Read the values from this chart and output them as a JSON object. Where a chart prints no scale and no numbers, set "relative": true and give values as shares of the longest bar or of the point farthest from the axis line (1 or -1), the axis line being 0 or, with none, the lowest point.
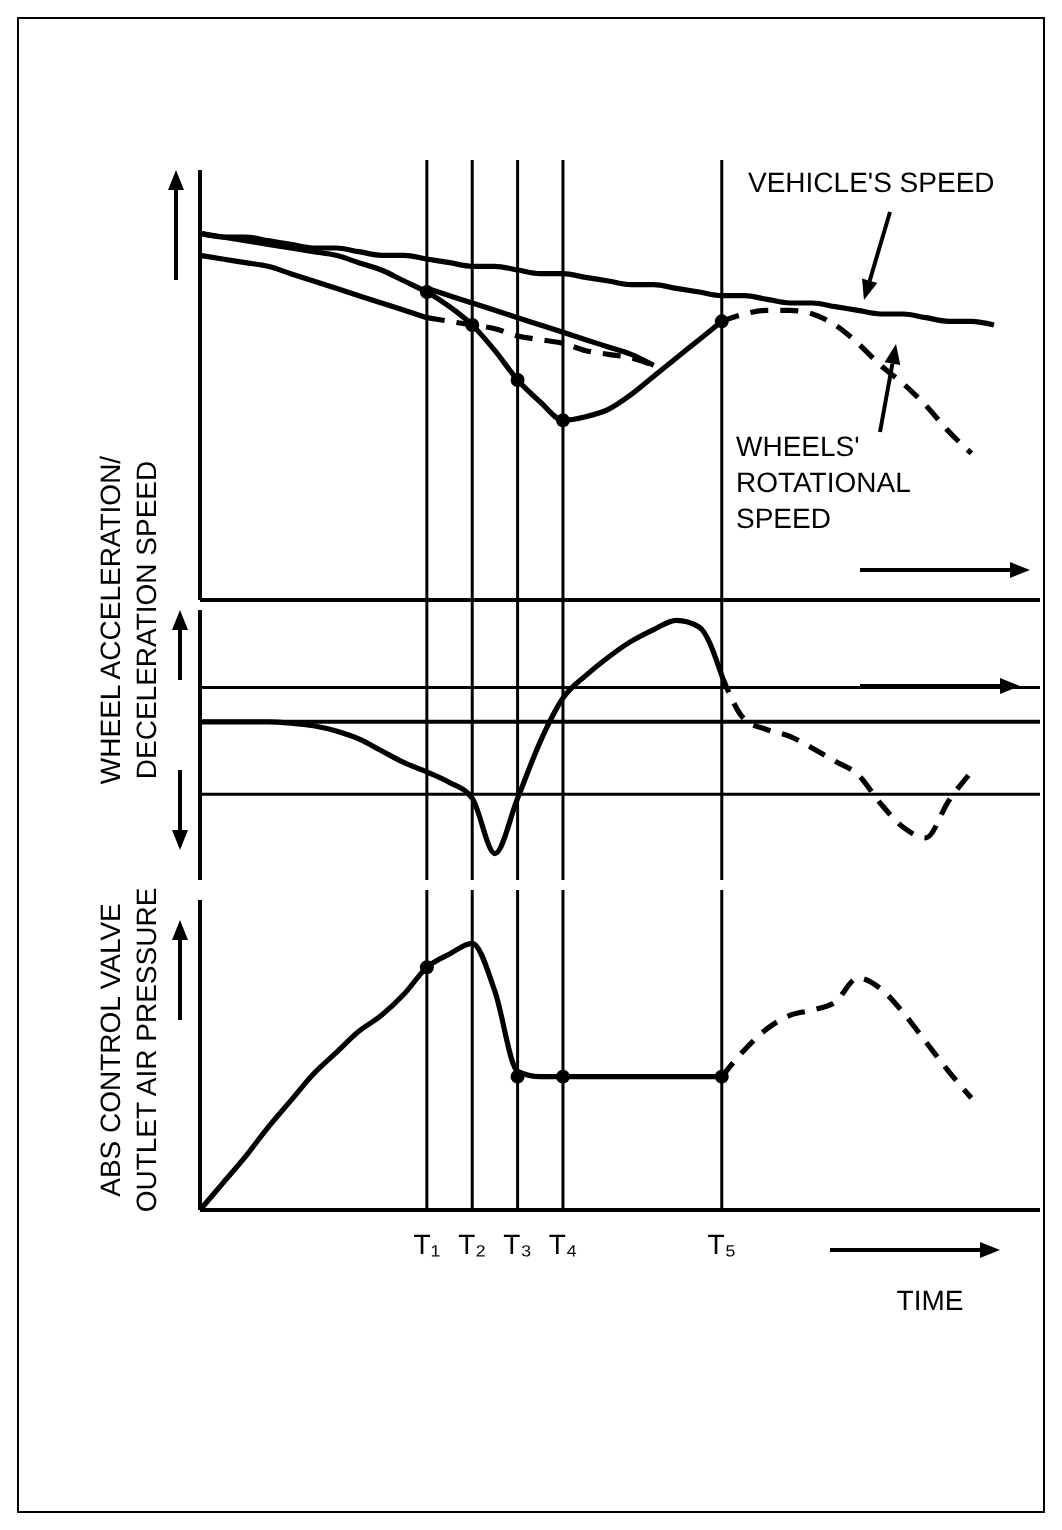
{
  "chart_data": [
    {
      "type": "line",
      "relative": true,
      "tick_labels": false,
      "categories": [
        null,
        null,
        null,
        null,
        null,
        null,
        null,
        null,
        null,
        null,
        "T₁",
        null,
        "T₂",
        null,
        "T₃",
        null,
        "T₄",
        null,
        null,
        null,
        null,
        null,
        null,
        "T₅",
        null,
        null,
        null,
        null,
        null,
        null,
        null,
        null,
        null,
        null,
        null,
        null
      ],
      "series": [
        {
          "name": "VEHICLE'S SPEED",
          "color": "#000000",
          "line_style": "solid",
          "values": [
            1,
            0.99,
            0.99,
            0.98,
            0.97,
            0.96,
            0.96,
            0.95,
            0.94,
            0.94,
            0.93,
            0.92,
            0.91,
            0.91,
            0.9,
            0.89,
            0.89,
            0.88,
            0.87,
            0.86,
            0.86,
            0.85,
            0.84,
            0.83,
            0.83,
            0.82,
            0.81,
            0.81,
            0.8,
            0.79,
            0.78,
            0.78,
            0.77,
            0.76,
            0.76,
            0.75
          ]
        },
        {
          "color": "#000000",
          "line_style": "solid",
          "values": [
            1,
            0.99,
            0.98,
            0.97,
            0.96,
            0.95,
            0.94,
            0.92,
            0.9,
            0.87,
            0.84,
            0.8,
            0.75,
            0.68,
            0.6,
            0.54,
            0.49,
            0.5,
            0.52,
            0.56,
            0.61,
            0.66,
            0.71,
            0.76,
            null,
            null,
            null,
            null,
            null,
            null,
            null,
            null,
            null,
            null,
            null,
            null
          ]
        },
        {
          "name": "WHEELS' ROTATIONAL SPEED",
          "color": "#000000",
          "line_style": "dashed",
          "values": [
            null,
            null,
            null,
            null,
            null,
            null,
            null,
            null,
            null,
            null,
            null,
            null,
            null,
            null,
            null,
            null,
            null,
            null,
            null,
            null,
            null,
            null,
            null,
            0.76,
            0.78,
            0.79,
            0.79,
            0.78,
            0.75,
            0.7,
            0.64,
            0.59,
            0.53,
            0.46,
            0.4,
            null
          ]
        },
        {
          "color": "#000000",
          "line_style": "solid",
          "values": [
            null,
            null,
            null,
            null,
            null,
            null,
            null,
            null,
            null,
            null,
            0.85,
            0.83,
            0.81,
            0.79,
            0.77,
            0.75,
            0.73,
            0.71,
            0.69,
            0.67,
            0.64,
            null,
            null,
            null,
            null,
            null,
            null,
            null,
            null,
            null,
            null,
            null,
            null,
            null,
            null,
            null
          ]
        },
        {
          "color": "#000000",
          "line_style": "solid",
          "values": [
            0.94,
            0.93,
            0.92,
            0.91,
            0.89,
            0.87,
            0.85,
            0.83,
            0.81,
            0.79,
            0.77,
            null,
            null,
            null,
            null,
            null,
            null,
            null,
            null,
            null,
            null,
            null,
            null,
            null,
            null,
            null,
            null,
            null,
            null,
            null,
            null,
            null,
            null,
            null,
            null,
            null
          ]
        },
        {
          "color": "#000000",
          "line_style": "dashed",
          "values": [
            null,
            null,
            null,
            null,
            null,
            null,
            null,
            null,
            null,
            null,
            0.77,
            0.76,
            0.75,
            0.74,
            0.72,
            0.71,
            0.7,
            0.68,
            0.67,
            0.66,
            0.64,
            null,
            null,
            null,
            null,
            null,
            null,
            null,
            null,
            null,
            null,
            null,
            null,
            null,
            null,
            null
          ]
        },
        {
          "type": "scatter",
          "marker": "circle",
          "color": "#000000",
          "values": [
            null,
            null,
            null,
            null,
            null,
            null,
            null,
            null,
            null,
            null,
            0.84,
            null,
            0.75,
            null,
            0.6,
            null,
            0.49,
            null,
            null,
            null,
            null,
            null,
            null,
            0.76,
            null,
            null,
            null,
            null,
            null,
            null,
            null,
            null,
            null,
            null,
            null,
            null
          ]
        }
      ],
      "ref_lines": [
        {
          "axis": "x",
          "value": "T₁"
        },
        {
          "axis": "x",
          "value": "T₂"
        },
        {
          "axis": "x",
          "value": "T₃"
        },
        {
          "axis": "x",
          "value": "T₄"
        },
        {
          "axis": "x",
          "value": "T₅"
        }
      ]
    },
    {
      "type": "line",
      "relative": true,
      "tick_labels": false,
      "ylabel": "WHEEL ACCELERATION/ DECELERATION SPEED",
      "categories": [
        null,
        null,
        null,
        null,
        null,
        null,
        null,
        null,
        null,
        null,
        "T₁",
        null,
        "T₂",
        null,
        "T₃",
        null,
        "T₄",
        null,
        null,
        null,
        null,
        null,
        null,
        "T₅",
        null,
        null,
        null,
        null,
        null,
        null,
        null,
        null,
        null,
        null,
        null,
        null
      ],
      "series": [
        {
          "color": "#000000",
          "line_style": "solid",
          "values": [
            0,
            0,
            0,
            0,
            -0.01,
            -0.03,
            -0.07,
            -0.13,
            -0.22,
            -0.31,
            -0.38,
            -0.46,
            -0.58,
            -1,
            -0.58,
            -0.15,
            0.18,
            0.35,
            0.49,
            0.61,
            0.7,
            0.77,
            0.72,
            0.35,
            null,
            null,
            null,
            null,
            null,
            null,
            null,
            null,
            null,
            null,
            null,
            null
          ]
        },
        {
          "color": "#000000",
          "line_style": "dashed",
          "values": [
            null,
            null,
            null,
            null,
            null,
            null,
            null,
            null,
            null,
            null,
            null,
            null,
            null,
            null,
            null,
            null,
            null,
            null,
            null,
            null,
            null,
            null,
            null,
            0.35,
            0.02,
            -0.06,
            -0.11,
            -0.2,
            -0.3,
            -0.4,
            -0.62,
            -0.8,
            -0.88,
            -0.6,
            -0.38,
            null
          ]
        }
      ],
      "ref_lines": [
        {
          "axis": "y",
          "value": 0.26
        },
        {
          "axis": "y",
          "value": -0.55
        },
        {
          "axis": "x",
          "value": "T₁"
        },
        {
          "axis": "x",
          "value": "T₂"
        },
        {
          "axis": "x",
          "value": "T₃"
        },
        {
          "axis": "x",
          "value": "T₄"
        },
        {
          "axis": "x",
          "value": "T₅"
        }
      ]
    },
    {
      "type": "line",
      "relative": true,
      "tick_labels": "x",
      "xlabel": "TIME",
      "ylabel": "ABS CONTROL VALVE OUTLET AIR PRESSURE",
      "categories": [
        null,
        null,
        null,
        null,
        null,
        null,
        null,
        null,
        null,
        null,
        "T₁",
        null,
        "T₂",
        null,
        "T₃",
        null,
        "T₄",
        null,
        null,
        null,
        null,
        null,
        null,
        "T₅",
        null,
        null,
        null,
        null,
        null,
        null,
        null,
        null,
        null,
        null,
        null,
        null
      ],
      "series": [
        {
          "color": "#000000",
          "line_style": "solid",
          "values": [
            0,
            0.1,
            0.2,
            0.31,
            0.41,
            0.51,
            0.59,
            0.67,
            0.73,
            0.81,
            0.91,
            0.96,
            1,
            0.82,
            0.52,
            0.5,
            0.5,
            0.5,
            0.5,
            0.5,
            0.5,
            0.5,
            0.5,
            0.5,
            null,
            null,
            null,
            null,
            null,
            null,
            null,
            null,
            null,
            null,
            null,
            null
          ]
        },
        {
          "color": "#000000",
          "line_style": "dashed",
          "values": [
            null,
            null,
            null,
            null,
            null,
            null,
            null,
            null,
            null,
            null,
            null,
            null,
            null,
            null,
            null,
            null,
            null,
            null,
            null,
            null,
            null,
            null,
            null,
            0.5,
            0.6,
            0.68,
            0.73,
            0.75,
            0.78,
            0.87,
            0.83,
            0.74,
            0.63,
            0.52,
            0.42,
            null
          ]
        },
        {
          "type": "scatter",
          "marker": "circle",
          "color": "#000000",
          "values": [
            null,
            null,
            null,
            null,
            null,
            null,
            null,
            null,
            null,
            null,
            0.91,
            null,
            null,
            null,
            0.5,
            null,
            0.5,
            null,
            null,
            null,
            null,
            null,
            null,
            0.5,
            null,
            null,
            null,
            null,
            null,
            null,
            null,
            null,
            null,
            null,
            null,
            null
          ]
        }
      ],
      "ref_lines": [
        {
          "axis": "x",
          "value": "T₁"
        },
        {
          "axis": "x",
          "value": "T₂"
        },
        {
          "axis": "x",
          "value": "T₃"
        },
        {
          "axis": "x",
          "value": "T₄"
        },
        {
          "axis": "x",
          "value": "T₅"
        }
      ]
    }
  ]
}
